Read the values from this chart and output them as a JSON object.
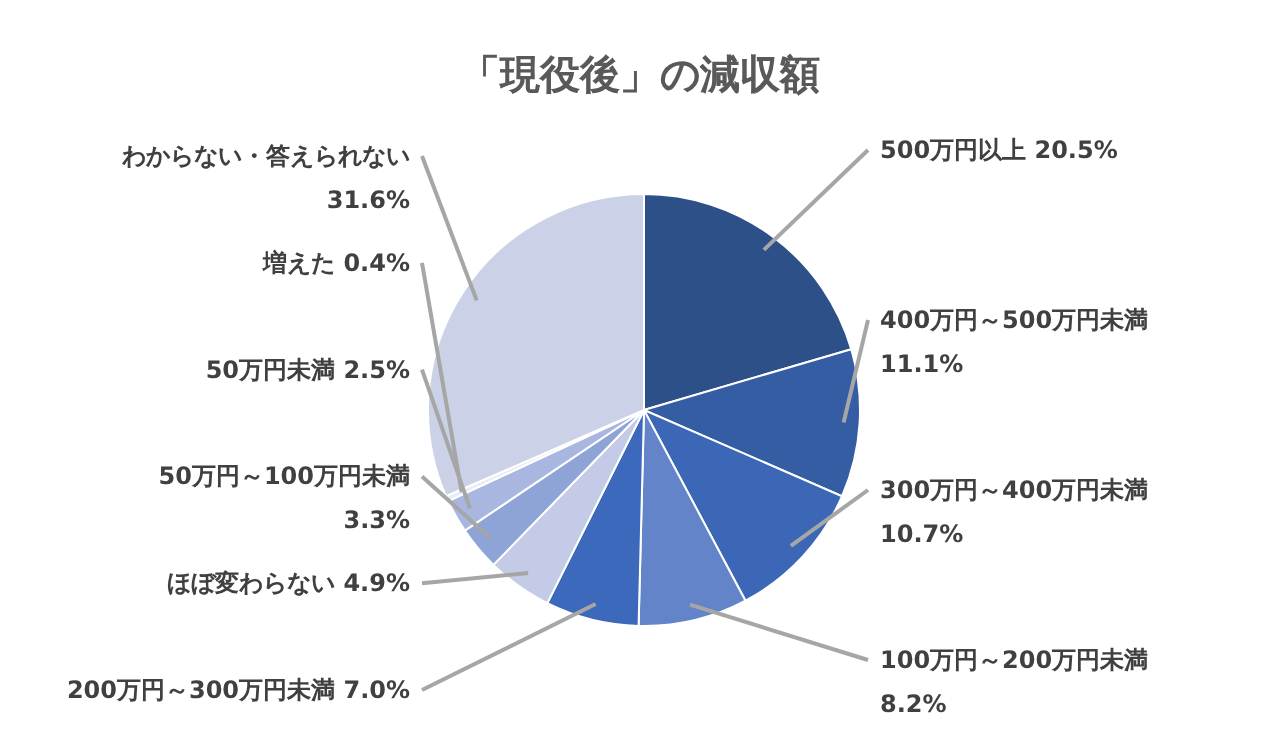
{
  "chart_data": {
    "type": "pie",
    "title": "「現役後」の減収額",
    "categories": [
      "500万円以上",
      "400万円～500万円未満",
      "300万円～400万円未満",
      "100万円～200万円未満",
      "200万円～300万円未満",
      "ほぼ変わらない",
      "50万円～100万円未満",
      "50万円未満",
      "増えた",
      "わからない・答えられない"
    ],
    "values": [
      20.5,
      11.1,
      10.7,
      8.2,
      7.0,
      4.9,
      3.3,
      2.5,
      0.4,
      31.6
    ],
    "value_labels": [
      "20.5%",
      "11.1%",
      "10.7%",
      "8.2%",
      "7.0%",
      "4.9%",
      "3.3%",
      "2.5%",
      "0.4%",
      "31.6%"
    ],
    "colors": [
      "#2e5088",
      "#345da4",
      "#3b67b6",
      "#6384c8",
      "#3c69bb",
      "#c3cbe6",
      "#8ea3d6",
      "#a9b6e0",
      "#e8ecf6",
      "#cbd2e8"
    ]
  }
}
